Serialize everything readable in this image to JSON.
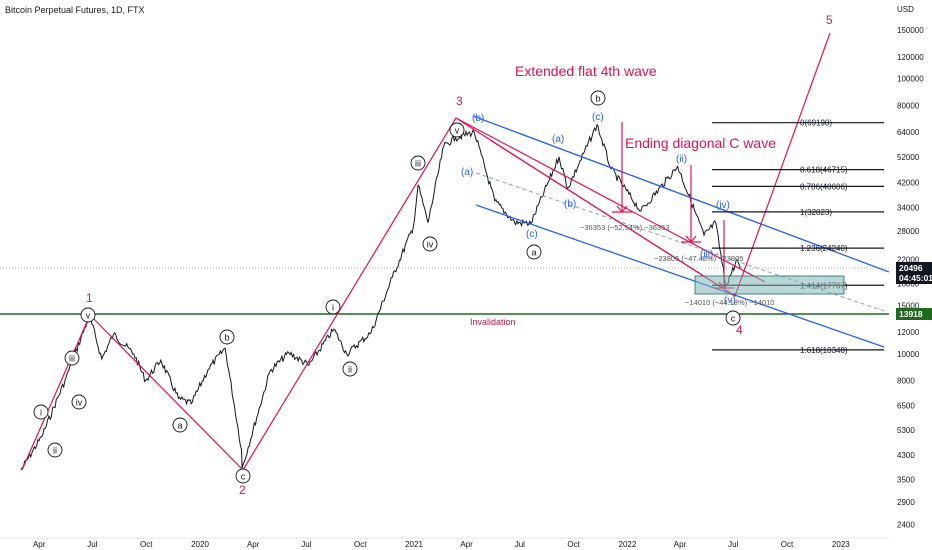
{
  "header": {
    "title": "Bitcoin Perpetual Futures, 1D, FTX"
  },
  "colors": {
    "red": "#e8124d",
    "blue": "#2962ff",
    "green": "#1e6b1e",
    "teal": "#7fb6b0"
  },
  "chart_data": {
    "type": "line",
    "title": "Bitcoin Perpetual Futures, 1D, FTX",
    "y_unit": "USD",
    "y_scale": "log",
    "ylim": [
      2200,
      250000
    ],
    "y_ticks": [
      "150000",
      "120000",
      "100000",
      "80000",
      "64000",
      "52000",
      "42000",
      "34000",
      "28000",
      "22000",
      "18000",
      "15000",
      "12000",
      "10000",
      "8000",
      "6500",
      "5300",
      "4300",
      "3500",
      "2900",
      "2400"
    ],
    "x_ticks": [
      "Apr",
      "Jul",
      "Oct",
      "2020",
      "Apr",
      "Jul",
      "Oct",
      "2021",
      "Apr",
      "Jul",
      "Oct",
      "2022",
      "Apr",
      "Jul",
      "Oct",
      "2023"
    ],
    "price_series": [
      {
        "x": "2019-03-01",
        "y": 3800
      },
      {
        "x": "2019-04-05",
        "y": 5000
      },
      {
        "x": "2019-05-15",
        "y": 8000
      },
      {
        "x": "2019-06-26",
        "y": 13800
      },
      {
        "x": "2019-07-17",
        "y": 9600
      },
      {
        "x": "2019-08-06",
        "y": 11800
      },
      {
        "x": "2019-09-10",
        "y": 10000
      },
      {
        "x": "2019-09-30",
        "y": 8000
      },
      {
        "x": "2019-10-26",
        "y": 9500
      },
      {
        "x": "2019-11-25",
        "y": 6900
      },
      {
        "x": "2019-12-17",
        "y": 6600
      },
      {
        "x": "2020-01-15",
        "y": 8800
      },
      {
        "x": "2020-02-13",
        "y": 10500
      },
      {
        "x": "2020-03-12",
        "y": 4500
      },
      {
        "x": "2020-03-13",
        "y": 3850
      },
      {
        "x": "2020-04-30",
        "y": 8700
      },
      {
        "x": "2020-06-01",
        "y": 10100
      },
      {
        "x": "2020-07-05",
        "y": 9100
      },
      {
        "x": "2020-08-17",
        "y": 12300
      },
      {
        "x": "2020-09-08",
        "y": 10000
      },
      {
        "x": "2020-10-20",
        "y": 12000
      },
      {
        "x": "2020-11-25",
        "y": 19000
      },
      {
        "x": "2020-12-31",
        "y": 29000
      },
      {
        "x": "2021-01-08",
        "y": 41000
      },
      {
        "x": "2021-01-25",
        "y": 30000
      },
      {
        "x": "2021-02-21",
        "y": 57000
      },
      {
        "x": "2021-03-13",
        "y": 61000
      },
      {
        "x": "2021-04-14",
        "y": 64000
      },
      {
        "x": "2021-05-19",
        "y": 36000
      },
      {
        "x": "2021-06-22",
        "y": 30000
      },
      {
        "x": "2021-07-20",
        "y": 29800
      },
      {
        "x": "2021-09-06",
        "y": 52000
      },
      {
        "x": "2021-09-21",
        "y": 40000
      },
      {
        "x": "2021-11-10",
        "y": 68000
      },
      {
        "x": "2021-12-04",
        "y": 47000
      },
      {
        "x": "2022-01-24",
        "y": 33000
      },
      {
        "x": "2022-03-28",
        "y": 48000
      },
      {
        "x": "2022-05-12",
        "y": 27000
      },
      {
        "x": "2022-06-01",
        "y": 30000
      },
      {
        "x": "2022-06-18",
        "y": 17700
      },
      {
        "x": "2022-07-08",
        "y": 22000
      },
      {
        "x": "2022-07-13",
        "y": 20496
      }
    ],
    "fib_levels": [
      {
        "ratio": "0",
        "value": 69190,
        "label": "0(69190)"
      },
      {
        "ratio": "0.618",
        "value": 46715,
        "label": "0.618(46715)"
      },
      {
        "ratio": "0.786",
        "value": 40606,
        "label": "0.786(40606)"
      },
      {
        "ratio": "1",
        "value": 32823,
        "label": "1(32823)"
      },
      {
        "ratio": "1.236",
        "value": 24240,
        "label": "1.236(24240)"
      },
      {
        "ratio": "1.414",
        "value": 17767,
        "label": "1.414(17767)"
      },
      {
        "ratio": "1.618",
        "value": 10348,
        "label": "1.618(10348)"
      }
    ],
    "invalidation_level": 13918,
    "current_price": "20496",
    "countdown": "04:45:01",
    "invalidation_tag": "13918"
  },
  "annotations": {
    "extended_flat": "Extended flat 4th wave",
    "ending_diagonal": "Ending diagonal C wave",
    "invalidation": "Invalidation",
    "measure1": "−36353 (−52.54%) −36353",
    "measure2": "−23805 (−47.48%) −23805",
    "measure3": "−14010 (−44.18%) −14010"
  },
  "waves": {
    "red_1": "1",
    "red_2": "2",
    "red_3": "3",
    "red_4": "4",
    "red_5": "5",
    "circ_i": "i",
    "circ_ii": "ii",
    "circ_iii": "iii",
    "circ_iv": "iv",
    "circ_v": "v",
    "circ_a": "a",
    "circ_b": "b",
    "circ_c": "c",
    "blue_a": "(a)",
    "blue_b": "(b)",
    "blue_c": "(c)",
    "blue_ii": "(ii)",
    "blue_iii": "(iii)",
    "blue_iv": "(iv)",
    "blue_v": "(v)"
  }
}
